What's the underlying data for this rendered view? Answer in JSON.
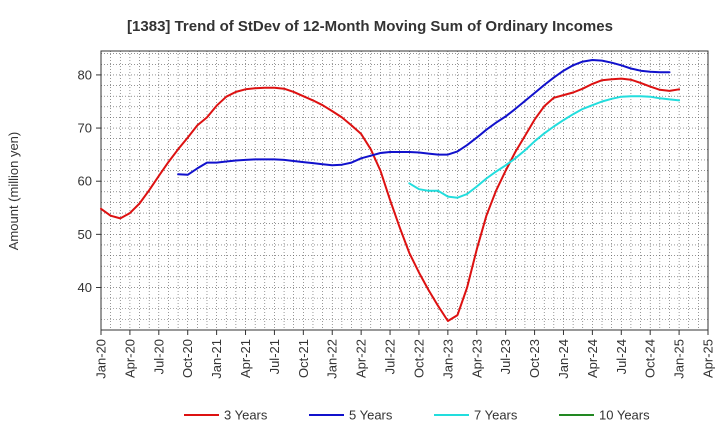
{
  "chart_data": {
    "type": "line",
    "title": "[1383]  Trend of StDev of 12-Month Moving Sum of Ordinary Incomes",
    "ylabel": "Amount (million yen)",
    "xlabel": "",
    "ylim": [
      32,
      84.5
    ],
    "y_ticks": [
      40,
      50,
      60,
      70,
      80
    ],
    "x_ticks": [
      "Jan-20",
      "Apr-20",
      "Jul-20",
      "Oct-20",
      "Jan-21",
      "Apr-21",
      "Jul-21",
      "Oct-21",
      "Jan-22",
      "Apr-22",
      "Jul-22",
      "Oct-22",
      "Jan-23",
      "Apr-23",
      "Jul-23",
      "Oct-23",
      "Jan-24",
      "Apr-24",
      "Jul-24",
      "Oct-24",
      "Jan-25",
      "Apr-25"
    ],
    "grid": true,
    "legend_position": "bottom",
    "series": [
      {
        "name": "3 Years",
        "color": "#dd1111",
        "start": "Jan-20",
        "values": [
          54.8,
          53.5,
          53.0,
          54.0,
          55.8,
          58.3,
          61.0,
          63.6,
          66.0,
          68.2,
          70.5,
          72.0,
          74.2,
          75.9,
          76.8,
          77.3,
          77.5,
          77.6,
          77.6,
          77.4,
          76.8,
          76.0,
          75.2,
          74.3,
          73.2,
          72.0,
          70.5,
          68.9,
          66.0,
          62.0,
          56.5,
          51.3,
          46.5,
          42.8,
          39.5,
          36.5,
          33.7,
          34.8,
          40.0,
          47.2,
          53.5,
          58.2,
          62.0,
          65.5,
          68.5,
          71.6,
          74.1,
          75.7,
          76.2,
          76.7,
          77.4,
          78.3,
          79.0,
          79.2,
          79.3,
          79.1,
          78.5,
          77.8,
          77.2,
          77.0,
          77.3
        ]
      },
      {
        "name": "5 Years",
        "color": "#1111cc",
        "start": "Sep-20",
        "values": [
          61.3,
          61.2,
          62.4,
          63.5,
          63.5,
          63.7,
          63.9,
          64.0,
          64.1,
          64.1,
          64.1,
          64.0,
          63.8,
          63.6,
          63.4,
          63.2,
          63.0,
          63.1,
          63.5,
          64.3,
          64.8,
          65.3,
          65.5,
          65.5,
          65.5,
          65.4,
          65.2,
          65.0,
          65.0,
          65.6,
          66.8,
          68.2,
          69.7,
          71.0,
          72.2,
          73.6,
          75.1,
          76.6,
          78.1,
          79.5,
          80.8,
          81.8,
          82.5,
          82.8,
          82.7,
          82.3,
          81.8,
          81.2,
          80.8,
          80.6,
          80.5,
          80.5
        ]
      },
      {
        "name": "7 Years",
        "color": "#22dddd",
        "start": "Sep-22",
        "values": [
          59.6,
          58.5,
          58.2,
          58.2,
          57.1,
          56.9,
          57.6,
          59.0,
          60.5,
          61.8,
          63.0,
          64.3,
          65.8,
          67.5,
          69.0,
          70.3,
          71.5,
          72.6,
          73.6,
          74.3,
          75.0,
          75.5,
          75.9,
          76.0,
          76.0,
          75.9,
          75.6,
          75.4,
          75.2
        ]
      },
      {
        "name": "10 Years",
        "color": "#228822",
        "start": "Jan-25",
        "values": []
      }
    ]
  }
}
